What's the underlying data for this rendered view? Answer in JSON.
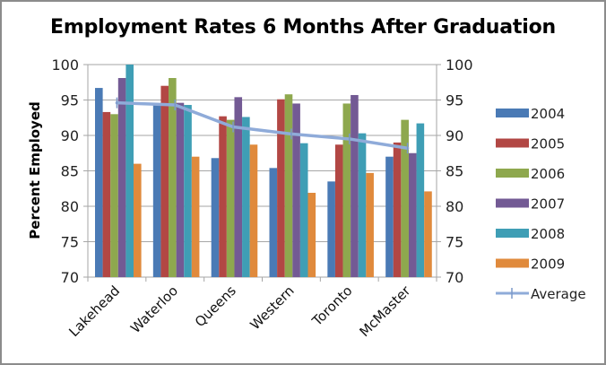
{
  "chart_data": {
    "type": "bar",
    "title": "Employment Rates 6 Months After  Graduation",
    "xlabel": "",
    "ylabel": "Percent Employed",
    "ylim": [
      70,
      100
    ],
    "y_ticks": [
      70,
      75,
      80,
      85,
      90,
      95,
      100
    ],
    "secondary_y_ticks": [
      70,
      75,
      80,
      85,
      90,
      95,
      100
    ],
    "grid": true,
    "legend_position": "right",
    "categories": [
      "Lakehead",
      "Waterloo",
      "Queens",
      "Western",
      "Toronto",
      "McMaster"
    ],
    "series": [
      {
        "name": "2004",
        "type": "bar",
        "color": "#4a7ab5",
        "values": [
          96.7,
          94.3,
          86.8,
          85.4,
          83.5,
          87.0
        ]
      },
      {
        "name": "2005",
        "type": "bar",
        "color": "#b24744",
        "values": [
          93.3,
          97.0,
          92.7,
          95.1,
          88.7,
          89.0
        ]
      },
      {
        "name": "2006",
        "type": "bar",
        "color": "#8ea84e",
        "values": [
          93.0,
          98.1,
          92.2,
          95.8,
          94.5,
          92.2
        ]
      },
      {
        "name": "2007",
        "type": "bar",
        "color": "#735a94",
        "values": [
          98.1,
          94.6,
          95.4,
          94.5,
          95.7,
          87.5
        ]
      },
      {
        "name": "2008",
        "type": "bar",
        "color": "#3f9eb5",
        "values": [
          100.0,
          94.3,
          92.6,
          88.9,
          90.3,
          91.7
        ]
      },
      {
        "name": "2009",
        "type": "bar",
        "color": "#e08a3c",
        "values": [
          86.0,
          87.0,
          88.7,
          81.9,
          84.7,
          82.1
        ]
      },
      {
        "name": "Average",
        "type": "line",
        "color": "#8fabd9",
        "values": [
          94.6,
          94.3,
          91.2,
          90.2,
          89.5,
          88.2
        ]
      }
    ]
  }
}
